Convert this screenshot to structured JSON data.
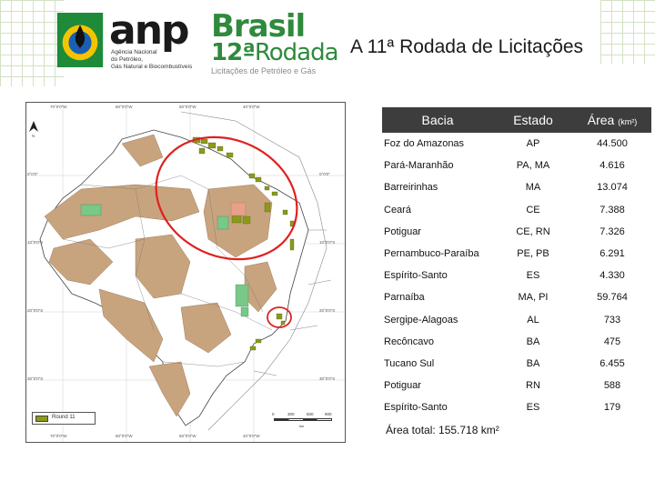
{
  "header": {
    "anp_logo_text": "anp",
    "anp_subtitle_lines": [
      "Agência Nacional",
      "do Petróleo,",
      "Gás Natural e Biocombustíveis"
    ],
    "brasil_title": "Brasil",
    "rodada_number": "12ª",
    "rodada_word": "Rodada",
    "brasil_subtitle": "Licitações de Petróleo e Gás",
    "slide_title": "A 11ª Rodada de Licitações"
  },
  "map": {
    "north_label": "N",
    "top_coords": [
      "70°0'0\"W",
      "60°0'0\"W",
      "50°0'0\"W",
      "40°0'0\"W"
    ],
    "bottom_coords": [
      "70°0'0\"W",
      "60°0'0\"W",
      "50°0'0\"W",
      "40°0'0\"W"
    ],
    "left_coords": [
      "0°0'0\"",
      "10°0'0\"S",
      "20°0'0\"S",
      "30°0'0\"S"
    ],
    "right_coords": [
      "0°0'0\"",
      "10°0'0\"S",
      "20°0'0\"S",
      "30°0'0\"S"
    ],
    "legend_label": "Round 11",
    "scale_labels": [
      "0",
      "300",
      "600",
      "900"
    ],
    "scale_unit": "km",
    "colors": {
      "basin": "#c8a47e",
      "land": "#ffffff",
      "blocks": "#8b9a1a",
      "highlight": "#e02020"
    }
  },
  "table": {
    "headers": {
      "bacia": "Bacia",
      "estado": "Estado",
      "area": "Área",
      "area_unit": "(km²)"
    },
    "rows": [
      {
        "bacia": "Foz do Amazonas",
        "estado": "AP",
        "area": "44.500"
      },
      {
        "bacia": "Pará-Maranhão",
        "estado": "PA, MA",
        "area": "4.616"
      },
      {
        "bacia": "Barreirinhas",
        "estado": "MA",
        "area": "13.074"
      },
      {
        "bacia": "Ceará",
        "estado": "CE",
        "area": "7.388"
      },
      {
        "bacia": "Potiguar",
        "estado": "CE, RN",
        "area": "7.326"
      },
      {
        "bacia": "Pernambuco-Paraíba",
        "estado": "PE, PB",
        "area": "6.291"
      },
      {
        "bacia": "Espírito-Santo",
        "estado": "ES",
        "area": "4.330"
      },
      {
        "bacia": "Parnaíba",
        "estado": "MA, PI",
        "area": "59.764"
      },
      {
        "bacia": "Sergipe-Alagoas",
        "estado": "AL",
        "area": "733"
      },
      {
        "bacia": "Recôncavo",
        "estado": "BA",
        "area": "475"
      },
      {
        "bacia": "Tucano Sul",
        "estado": "BA",
        "area": "6.455"
      },
      {
        "bacia": "Potiguar",
        "estado": "RN",
        "area": "588"
      },
      {
        "bacia": "Espírito-Santo",
        "estado": "ES",
        "area": "179"
      }
    ],
    "total": "Área total:  155.718 km²"
  }
}
